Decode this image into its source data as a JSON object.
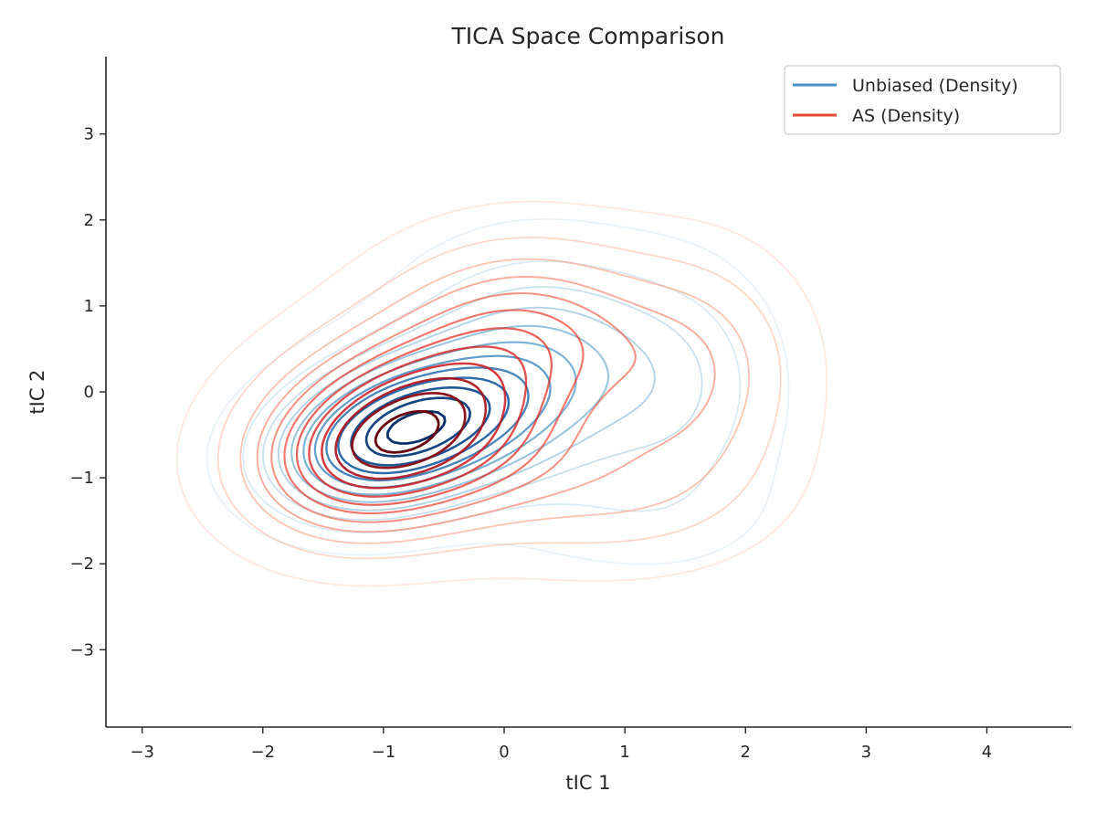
{
  "chart_data": {
    "type": "contour",
    "title": "TICA Space Comparison",
    "xlabel": "tIC 1",
    "ylabel": "tIC 2",
    "xlim": [
      -3.3,
      4.7
    ],
    "ylim": [
      -3.9,
      3.9
    ],
    "xticks": [
      -3,
      -2,
      -1,
      0,
      1,
      2,
      3,
      4
    ],
    "xtick_labels": [
      "−3",
      "−2",
      "−1",
      "0",
      "1",
      "2",
      "3",
      "4"
    ],
    "yticks": [
      -3,
      -2,
      -1,
      0,
      1,
      2,
      3
    ],
    "ytick_labels": [
      "−3",
      "−2",
      "−1",
      "0",
      "1",
      "2",
      "3"
    ],
    "grid": false,
    "legend_position": "top-right",
    "series": [
      {
        "name": "Unbiased (Density)",
        "color": "#4292c6",
        "colormap": "Blues",
        "levels": 12,
        "peak": [
          -0.7,
          -0.35
        ],
        "components": [
          {
            "mx": -0.75,
            "my": -0.4,
            "sx": 0.65,
            "sy": 0.55,
            "rho": 0.2,
            "w": 1.0
          },
          {
            "mx": 0.3,
            "my": 0.3,
            "sx": 0.7,
            "sy": 0.8,
            "rho": 0.0,
            "w": 0.45
          },
          {
            "mx": 1.5,
            "my": 0.0,
            "sx": 0.5,
            "sy": 0.9,
            "rho": 0.0,
            "w": 0.18
          },
          {
            "mx": -1.3,
            "my": -0.9,
            "sx": 0.5,
            "sy": 0.45,
            "rho": 0.0,
            "w": 0.25
          },
          {
            "mx": 1.0,
            "my": -1.4,
            "sx": 0.7,
            "sy": 0.45,
            "rho": 0.0,
            "w": 0.08
          }
        ]
      },
      {
        "name": "AS (Density)",
        "color": "#e34a33",
        "colormap": "Reds",
        "levels": 12,
        "peak": [
          -0.75,
          -0.4
        ],
        "components": [
          {
            "mx": -0.8,
            "my": -0.45,
            "sx": 0.75,
            "sy": 0.7,
            "rho": 0.15,
            "w": 1.0
          },
          {
            "mx": 0.2,
            "my": 0.7,
            "sx": 0.75,
            "sy": 0.7,
            "rho": 0.0,
            "w": 0.45
          },
          {
            "mx": 1.6,
            "my": 0.2,
            "sx": 0.55,
            "sy": 0.85,
            "rho": 0.0,
            "w": 0.28
          },
          {
            "mx": 0.8,
            "my": -1.1,
            "sx": 0.8,
            "sy": 0.6,
            "rho": 0.0,
            "w": 0.22
          },
          {
            "mx": -1.4,
            "my": -1.0,
            "sx": 0.5,
            "sy": 0.5,
            "rho": 0.0,
            "w": 0.2
          }
        ]
      }
    ]
  }
}
